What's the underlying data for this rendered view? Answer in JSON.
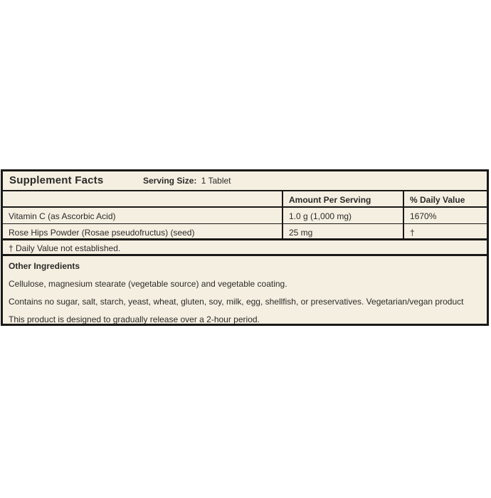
{
  "label": {
    "title": "Supplement Facts",
    "serving_size_label": "Serving Size:",
    "serving_size_value": "1 Tablet",
    "header": {
      "amount_column": "Amount Per Serving",
      "daily_value_column": "% Daily Value"
    },
    "rows": [
      {
        "name": "Vitamin C (as Ascorbic Acid)",
        "amount": "1.0 g (1,000 mg)",
        "daily_value": "1670%"
      },
      {
        "name": "Rose Hips Powder (Rosae pseudofructus) (seed)",
        "amount": "25 mg",
        "daily_value": "†"
      }
    ],
    "footnote": "† Daily Value not established.",
    "other_ingredients": {
      "heading": "Other Ingredients",
      "paragraphs": [
        "Cellulose, magnesium stearate (vegetable source) and vegetable coating.",
        "Contains no sugar, salt, starch, yeast, wheat, gluten, soy, milk, egg, shellfish, or preservatives. Vegetarian/vegan product",
        "This product is designed to gradually release over a 2-hour period."
      ]
    },
    "colors": {
      "panel_background": "#f5efe2",
      "border": "#1a1917",
      "text": "#2b2a27",
      "page_background": "#ffffff"
    }
  }
}
